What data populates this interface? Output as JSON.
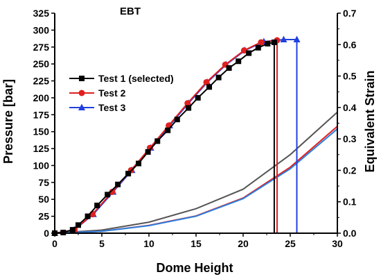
{
  "chart_data": {
    "type": "line",
    "title": "EBT",
    "xlabel": "Dome Height",
    "ylabel": "Pressure [bar]",
    "y2label": "Equivalent Strain",
    "xlim": [
      0,
      30
    ],
    "ylim": [
      0,
      325
    ],
    "y2lim": [
      0,
      0.7
    ],
    "xticks": [
      0,
      5,
      10,
      15,
      20,
      25,
      30
    ],
    "yticks": [
      0,
      25,
      50,
      75,
      100,
      125,
      150,
      175,
      200,
      225,
      250,
      275,
      300,
      325
    ],
    "y2ticks": [
      0.0,
      0.1,
      0.2,
      0.3,
      0.4,
      0.5,
      0.6,
      0.7
    ],
    "grid": false,
    "legend_position": "upper-left",
    "pressure_series": [
      {
        "name": "Test 1 (selected)",
        "color": "#000000",
        "marker": "square",
        "x": [
          0.0,
          0.9,
          1.9,
          2.5,
          3.5,
          4.5,
          5.6,
          6.7,
          7.8,
          8.9,
          9.9,
          10.9,
          12.0,
          13.0,
          14.2,
          15.2,
          16.4,
          17.4,
          18.5,
          19.5,
          20.6,
          21.6,
          22.6,
          23.3
        ],
        "y": [
          0,
          1,
          5,
          12,
          25,
          41,
          57,
          72,
          88,
          103,
          120,
          136,
          152,
          168,
          185,
          200,
          216,
          230,
          244,
          254,
          266,
          274,
          280,
          282
        ],
        "drop_x": 23.3
      },
      {
        "name": "Test 2",
        "color": "#e02020",
        "marker": "circle",
        "x": [
          0.0,
          2.1,
          4.0,
          6.1,
          8.1,
          10.1,
          12.1,
          14.1,
          16.1,
          18.1,
          20.1,
          21.9,
          23.6
        ],
        "y": [
          0,
          5,
          28,
          61,
          93,
          126,
          159,
          192,
          223,
          249,
          270,
          282,
          285
        ],
        "drop_x": 23.6
      },
      {
        "name": "Test 3",
        "color": "#2040e0",
        "marker": "triangle",
        "x": [
          0.0,
          2.1,
          4.1,
          6.2,
          8.2,
          10.2,
          12.2,
          14.2,
          16.2,
          18.2,
          20.2,
          22.2,
          24.3,
          25.7
        ],
        "y": [
          0,
          5,
          28,
          61,
          93,
          126,
          159,
          192,
          223,
          249,
          270,
          283,
          286,
          286
        ],
        "drop_x": 25.7
      }
    ],
    "strain_series": [
      {
        "color": "#555555",
        "x": [
          0,
          5,
          10,
          15,
          20,
          25,
          30
        ],
        "y": [
          0.0,
          0.01,
          0.035,
          0.078,
          0.14,
          0.25,
          0.385
        ]
      },
      {
        "color": "#e02020",
        "x": [
          0,
          5,
          10,
          15,
          20,
          25,
          30
        ],
        "y": [
          0.0,
          0.006,
          0.025,
          0.055,
          0.112,
          0.21,
          0.34
        ]
      },
      {
        "color": "#2a7fe0",
        "x": [
          0,
          5,
          10,
          15,
          20,
          25,
          30
        ],
        "y": [
          0.0,
          0.006,
          0.024,
          0.054,
          0.11,
          0.205,
          0.332
        ]
      }
    ]
  }
}
